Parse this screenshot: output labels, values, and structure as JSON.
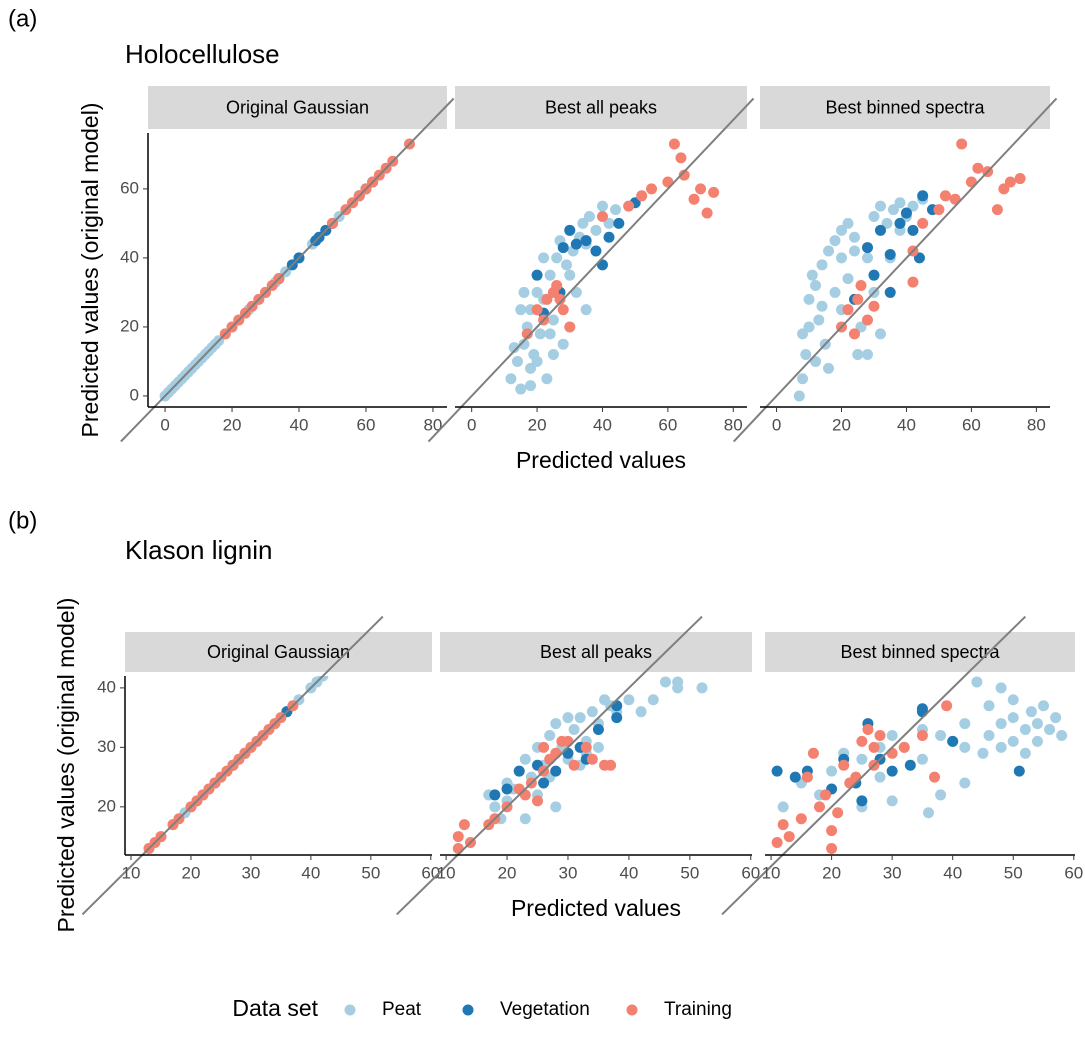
{
  "legend": {
    "title": "Data set"
  },
  "chart_data": [
    {
      "type": "scatter",
      "tag": "(a)",
      "title": "Holocellulose",
      "ylabel": "Predicted values (original model)",
      "panel": "Original Gaussian",
      "xlim": [
        -5.1,
        84.2
      ],
      "ylim": [
        -3.2,
        76.2
      ],
      "xticks": [
        0,
        20,
        40,
        60,
        80
      ],
      "yticks": [
        0,
        20,
        40,
        60
      ],
      "series": [
        {
          "name": "Peat",
          "color": "#a6cee3",
          "x": [
            0,
            2,
            4,
            6,
            8,
            10,
            12,
            14,
            16,
            18,
            20,
            22,
            25,
            28,
            30,
            33,
            36,
            40,
            44,
            48,
            52,
            56,
            1,
            3,
            5,
            7,
            9,
            11,
            13,
            15
          ],
          "values": [
            0,
            2,
            4,
            6,
            8,
            10,
            12,
            14,
            16,
            18,
            20,
            22,
            25,
            28,
            30,
            33,
            36,
            40,
            44,
            48,
            52,
            56,
            1,
            3,
            5,
            7,
            9,
            11,
            13,
            15
          ]
        },
        {
          "name": "Vegetation",
          "color": "#1f78b4",
          "x": [
            34,
            38,
            40,
            45,
            46,
            48,
            58,
            60,
            62,
            50
          ],
          "values": [
            34,
            38,
            40,
            45,
            46,
            48,
            58,
            60,
            62,
            50
          ]
        },
        {
          "name": "Training",
          "color": "#f4806f",
          "x": [
            18,
            20,
            22,
            24,
            26,
            28,
            30,
            32,
            34,
            50,
            54,
            56,
            58,
            60,
            62,
            64,
            66,
            68,
            73
          ],
          "values": [
            18,
            20,
            22,
            24,
            26,
            28,
            30,
            32,
            34,
            50,
            54,
            56,
            58,
            60,
            62,
            64,
            66,
            68,
            73
          ]
        }
      ]
    },
    {
      "type": "scatter",
      "xlabel": "Predicted values",
      "panel": "Best all peaks",
      "xlim": [
        -5.1,
        84.2
      ],
      "ylim": [
        -3.2,
        76.2
      ],
      "xticks": [
        0,
        20,
        40,
        60,
        80
      ],
      "yticks": [
        0,
        20,
        40,
        60
      ],
      "series": [
        {
          "name": "Peat",
          "color": "#a6cee3",
          "x": [
            12,
            14,
            15,
            16,
            17,
            18,
            18,
            19,
            20,
            21,
            22,
            23,
            24,
            25,
            26,
            27,
            28,
            29,
            30,
            31,
            32,
            33,
            34,
            35,
            36,
            38,
            40,
            42,
            44,
            15,
            20,
            25,
            27,
            22,
            13,
            16,
            30,
            35,
            24,
            18
          ],
          "values": [
            5,
            10,
            2,
            15,
            20,
            25,
            8,
            12,
            30,
            18,
            28,
            5,
            35,
            22,
            40,
            45,
            15,
            38,
            48,
            42,
            30,
            46,
            50,
            25,
            52,
            48,
            55,
            50,
            54,
            25,
            10,
            12,
            30,
            40,
            14,
            30,
            35,
            44,
            18,
            3
          ]
        },
        {
          "name": "Vegetation",
          "color": "#1f78b4",
          "x": [
            20,
            28,
            30,
            32,
            35,
            38,
            42,
            45,
            50,
            27,
            22,
            40
          ],
          "values": [
            35,
            43,
            48,
            44,
            45,
            42,
            46,
            50,
            56,
            30,
            24,
            38
          ]
        },
        {
          "name": "Training",
          "color": "#f4806f",
          "x": [
            17,
            20,
            22,
            23,
            25,
            26,
            28,
            30,
            27,
            40,
            48,
            52,
            55,
            60,
            62,
            64,
            68,
            70,
            72,
            74,
            65
          ],
          "values": [
            18,
            25,
            22,
            28,
            30,
            32,
            25,
            20,
            28,
            52,
            55,
            58,
            60,
            62,
            73,
            69,
            57,
            60,
            53,
            59,
            64
          ]
        }
      ]
    },
    {
      "type": "scatter",
      "panel": "Best binned spectra",
      "xlim": [
        -5.1,
        84.2
      ],
      "ylim": [
        -3.2,
        76.2
      ],
      "xticks": [
        0,
        20,
        40,
        60,
        80
      ],
      "yticks": [
        0,
        20,
        40,
        60
      ],
      "series": [
        {
          "name": "Peat",
          "color": "#a6cee3",
          "x": [
            7,
            8,
            9,
            10,
            10,
            12,
            13,
            14,
            15,
            16,
            18,
            20,
            22,
            24,
            25,
            28,
            30,
            32,
            34,
            36,
            38,
            40,
            42,
            45,
            12,
            20,
            18,
            26,
            28,
            14,
            22,
            35,
            24,
            30,
            8,
            16,
            32,
            38,
            20,
            11
          ],
          "values": [
            0,
            5,
            12,
            20,
            28,
            32,
            22,
            38,
            15,
            42,
            45,
            48,
            50,
            46,
            12,
            40,
            52,
            55,
            50,
            54,
            56,
            52,
            55,
            57,
            10,
            25,
            30,
            20,
            12,
            26,
            34,
            40,
            42,
            30,
            18,
            8,
            18,
            48,
            40,
            35
          ]
        },
        {
          "name": "Vegetation",
          "color": "#1f78b4",
          "x": [
            28,
            32,
            35,
            38,
            40,
            42,
            45,
            48,
            30,
            24,
            35,
            44
          ],
          "values": [
            43,
            48,
            41,
            50,
            53,
            48,
            58,
            54,
            35,
            28,
            30,
            40
          ]
        },
        {
          "name": "Training",
          "color": "#f4806f",
          "x": [
            20,
            22,
            24,
            25,
            26,
            28,
            30,
            42,
            45,
            50,
            52,
            55,
            57,
            60,
            62,
            68,
            70,
            72,
            75,
            42,
            65
          ],
          "values": [
            20,
            25,
            18,
            28,
            32,
            22,
            26,
            42,
            50,
            54,
            58,
            57,
            73,
            62,
            66,
            54,
            60,
            62,
            63,
            33,
            65
          ]
        }
      ]
    },
    {
      "type": "scatter",
      "tag": "(b)",
      "title": "Klason lignin",
      "ylabel": "Predicted values (original model)",
      "panel": "Original Gaussian",
      "xlim": [
        9.0,
        60.2
      ],
      "ylim": [
        11.9,
        42.0
      ],
      "xticks": [
        10,
        20,
        30,
        40,
        50,
        60
      ],
      "yticks": [
        20,
        30,
        40
      ],
      "series": [
        {
          "name": "Peat",
          "color": "#a6cee3",
          "x": [
            13,
            15,
            17,
            19,
            20,
            21,
            22,
            23,
            24,
            25,
            26,
            27,
            28,
            30,
            32,
            34,
            36,
            38,
            40,
            41,
            42
          ],
          "values": [
            13,
            15,
            17,
            19,
            20,
            21,
            22,
            23,
            24,
            25,
            26,
            27,
            28,
            30,
            32,
            34,
            36,
            38,
            40,
            41,
            42
          ]
        },
        {
          "name": "Vegetation",
          "color": "#1f78b4",
          "x": [
            27,
            36,
            24,
            29,
            31
          ],
          "values": [
            27,
            36,
            24,
            29,
            31
          ]
        },
        {
          "name": "Training",
          "color": "#f4806f",
          "x": [
            13,
            14,
            15,
            17,
            18,
            20,
            21,
            22,
            23,
            24,
            25,
            26,
            27,
            28,
            29,
            30,
            31,
            32,
            33,
            34,
            35,
            37
          ],
          "values": [
            13,
            14,
            15,
            17,
            18,
            20,
            21,
            22,
            23,
            24,
            25,
            26,
            27,
            28,
            29,
            30,
            31,
            32,
            33,
            34,
            35,
            37
          ]
        }
      ]
    },
    {
      "type": "scatter",
      "xlabel": "Predicted values",
      "panel": "Best all peaks",
      "xlim": [
        9.0,
        60.2
      ],
      "ylim": [
        11.9,
        42.0
      ],
      "xticks": [
        10,
        20,
        30,
        40,
        50,
        60
      ],
      "yticks": [
        20,
        30,
        40
      ],
      "series": [
        {
          "name": "Peat",
          "color": "#a6cee3",
          "x": [
            17,
            18,
            20,
            20,
            22,
            23,
            24,
            25,
            26,
            27,
            28,
            29,
            30,
            31,
            32,
            33,
            34,
            35,
            36,
            37,
            38,
            40,
            42,
            44,
            46,
            48,
            52,
            48,
            19,
            21,
            25,
            27,
            30,
            33,
            35,
            28,
            23,
            32
          ],
          "values": [
            22,
            20,
            24,
            21,
            26,
            28,
            25,
            30,
            27,
            32,
            34,
            30,
            35,
            33,
            35,
            31,
            36,
            34,
            38,
            37,
            36,
            38,
            36,
            38,
            41,
            40,
            40,
            41,
            18,
            23,
            22,
            25,
            28,
            29,
            30,
            20,
            18,
            27
          ]
        },
        {
          "name": "Vegetation",
          "color": "#1f78b4",
          "x": [
            18,
            20,
            22,
            25,
            28,
            30,
            32,
            35,
            38,
            38,
            26,
            33
          ],
          "values": [
            22,
            23,
            26,
            27,
            26,
            29,
            30,
            33,
            35,
            37,
            24,
            28
          ]
        },
        {
          "name": "Training",
          "color": "#f4806f",
          "x": [
            12,
            12,
            13,
            14,
            17,
            18,
            20,
            22,
            23,
            24,
            25,
            26,
            27,
            28,
            29,
            30,
            31,
            33,
            34,
            36,
            37,
            26
          ],
          "values": [
            13,
            15,
            17,
            14,
            17,
            18,
            20,
            23,
            22,
            24,
            21,
            26,
            28,
            29,
            31,
            31,
            27,
            30,
            28,
            27,
            27,
            30
          ]
        }
      ]
    },
    {
      "type": "scatter",
      "panel": "Best binned spectra",
      "xlim": [
        9.0,
        60.2
      ],
      "ylim": [
        11.9,
        42.0
      ],
      "xticks": [
        10,
        20,
        30,
        40,
        50,
        60
      ],
      "yticks": [
        20,
        30,
        40
      ],
      "series": [
        {
          "name": "Peat",
          "color": "#a6cee3",
          "x": [
            12,
            15,
            18,
            20,
            22,
            25,
            28,
            30,
            32,
            35,
            35,
            38,
            40,
            42,
            42,
            44,
            45,
            46,
            48,
            48,
            50,
            50,
            52,
            52,
            54,
            54,
            55,
            56,
            57,
            58,
            48,
            38,
            36,
            30,
            42,
            28,
            25,
            46,
            53,
            50
          ],
          "values": [
            20,
            24,
            22,
            26,
            29,
            28,
            30,
            32,
            30,
            28,
            33,
            32,
            31,
            30,
            34,
            41,
            29,
            32,
            30,
            34,
            31,
            35,
            33,
            29,
            34,
            31,
            37,
            33,
            35,
            32,
            40,
            22,
            19,
            21,
            24,
            25,
            20,
            37,
            36,
            38
          ]
        },
        {
          "name": "Vegetation",
          "color": "#1f78b4",
          "x": [
            11,
            14,
            16,
            20,
            22,
            24,
            26,
            28,
            30,
            33,
            35,
            35,
            40,
            51,
            25
          ],
          "values": [
            26,
            25,
            26,
            23,
            28,
            24,
            34,
            28,
            26,
            27,
            36,
            36.5,
            31,
            26,
            21
          ]
        },
        {
          "name": "Training",
          "color": "#f4806f",
          "x": [
            11,
            12,
            13,
            15,
            16,
            17,
            18,
            19,
            20,
            20,
            22,
            23,
            24,
            25,
            26,
            27,
            28,
            30,
            32,
            35,
            37,
            39,
            27,
            21
          ],
          "values": [
            14,
            17,
            15,
            18,
            25,
            29,
            20,
            22,
            13,
            16,
            27,
            24,
            25,
            31,
            33,
            30,
            32,
            29,
            30,
            32,
            25,
            37,
            27,
            19
          ]
        }
      ]
    }
  ]
}
